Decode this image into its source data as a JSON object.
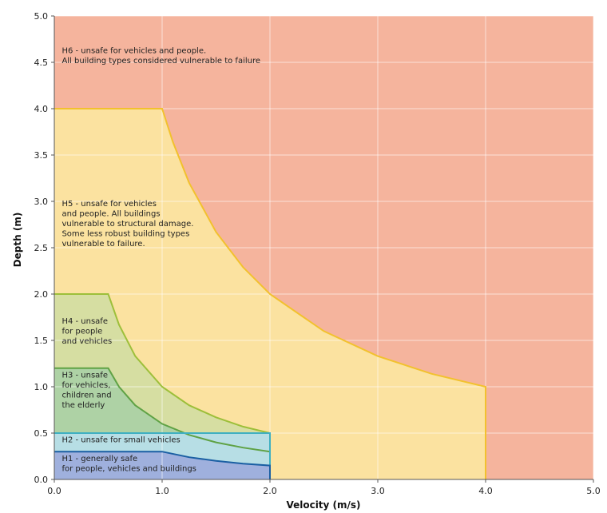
{
  "chart_data": {
    "type": "area",
    "title": "",
    "xlabel": "Velocity (m/s)",
    "ylabel": "Depth (m)",
    "xlim": [
      0,
      5
    ],
    "ylim": [
      0,
      5
    ],
    "x_ticks": [
      "0.0",
      "1.0",
      "2.0",
      "3.0",
      "4.0",
      "5.0"
    ],
    "y_ticks": [
      "0.0",
      "0.5",
      "1.0",
      "1.5",
      "2.0",
      "2.5",
      "3.0",
      "3.5",
      "4.0",
      "4.5",
      "5.0"
    ],
    "grid": true,
    "series": [
      {
        "name": "H6",
        "label_lines": [
          "H6 - unsafe for vehicles and people.",
          "All building types considered vulnerable to failure"
        ],
        "fill": "#f5b49d",
        "stroke": "none",
        "boundary": [
          [
            0,
            5
          ],
          [
            5,
            5
          ],
          [
            5,
            0
          ],
          [
            0,
            0
          ]
        ]
      },
      {
        "name": "H5",
        "label_lines": [
          "H5 - unsafe for vehicles",
          "and people. All buildings",
          "vulnerable to structural damage.",
          "Some less robust building types",
          "vulnerable to failure."
        ],
        "fill": "#fbe2a0",
        "stroke": "#f2c12e",
        "boundary": [
          [
            0,
            0
          ],
          [
            0,
            4
          ],
          [
            1,
            4
          ],
          [
            1.1,
            3.64
          ],
          [
            1.25,
            3.2
          ],
          [
            1.5,
            2.67
          ],
          [
            1.75,
            2.29
          ],
          [
            2,
            2
          ],
          [
            2.5,
            1.6
          ],
          [
            3,
            1.33
          ],
          [
            3.5,
            1.14
          ],
          [
            4,
            1
          ],
          [
            4,
            0
          ]
        ]
      },
      {
        "name": "H4",
        "label_lines": [
          "H4 - unsafe",
          "for people",
          "and vehicles"
        ],
        "fill": "#d6dea2",
        "stroke": "#9dbf3a",
        "boundary": [
          [
            0,
            0
          ],
          [
            0,
            2
          ],
          [
            0.5,
            2
          ],
          [
            0.6,
            1.67
          ],
          [
            0.75,
            1.33
          ],
          [
            1,
            1
          ],
          [
            1.25,
            0.8
          ],
          [
            1.5,
            0.67
          ],
          [
            1.75,
            0.57
          ],
          [
            2,
            0.5
          ],
          [
            2,
            0
          ]
        ]
      },
      {
        "name": "H3",
        "label_lines": [
          "H3 - unsafe",
          "for vehicles,",
          "children and",
          "the elderly"
        ],
        "fill": "#aed2a5",
        "stroke": "#5fa245",
        "boundary": [
          [
            0,
            0
          ],
          [
            0,
            1.2
          ],
          [
            0.5,
            1.2
          ],
          [
            0.6,
            1.0
          ],
          [
            0.75,
            0.8
          ],
          [
            1,
            0.6
          ],
          [
            1.25,
            0.48
          ],
          [
            1.5,
            0.4
          ],
          [
            1.75,
            0.343
          ],
          [
            2,
            0.3
          ],
          [
            2,
            0
          ]
        ]
      },
      {
        "name": "H2",
        "label_lines": [
          "H2 - unsafe for small vehicles"
        ],
        "fill": "#b7dee5",
        "stroke": "#3fb0c2",
        "boundary": [
          [
            0,
            0
          ],
          [
            0,
            0.5
          ],
          [
            2,
            0.5
          ],
          [
            2,
            0
          ]
        ]
      },
      {
        "name": "H1",
        "label_lines": [
          "H1 - generally safe",
          "for people, vehicles and buildings"
        ],
        "fill": "#9fb0dd",
        "stroke": "#1a5fa3",
        "boundary": [
          [
            0,
            0
          ],
          [
            0,
            0.3
          ],
          [
            1,
            0.3
          ],
          [
            1.25,
            0.24
          ],
          [
            1.5,
            0.2
          ],
          [
            1.75,
            0.171
          ],
          [
            2,
            0.15
          ],
          [
            2,
            0
          ]
        ]
      }
    ],
    "annotations": [
      {
        "zone": "H6",
        "x": 0.07,
        "y": 4.6
      },
      {
        "zone": "H5",
        "x": 0.07,
        "y": 2.95
      },
      {
        "zone": "H4",
        "x": 0.07,
        "y": 1.68
      },
      {
        "zone": "H3",
        "x": 0.07,
        "y": 1.1
      },
      {
        "zone": "H2",
        "x": 0.07,
        "y": 0.4
      },
      {
        "zone": "H1",
        "x": 0.07,
        "y": 0.2
      }
    ]
  }
}
